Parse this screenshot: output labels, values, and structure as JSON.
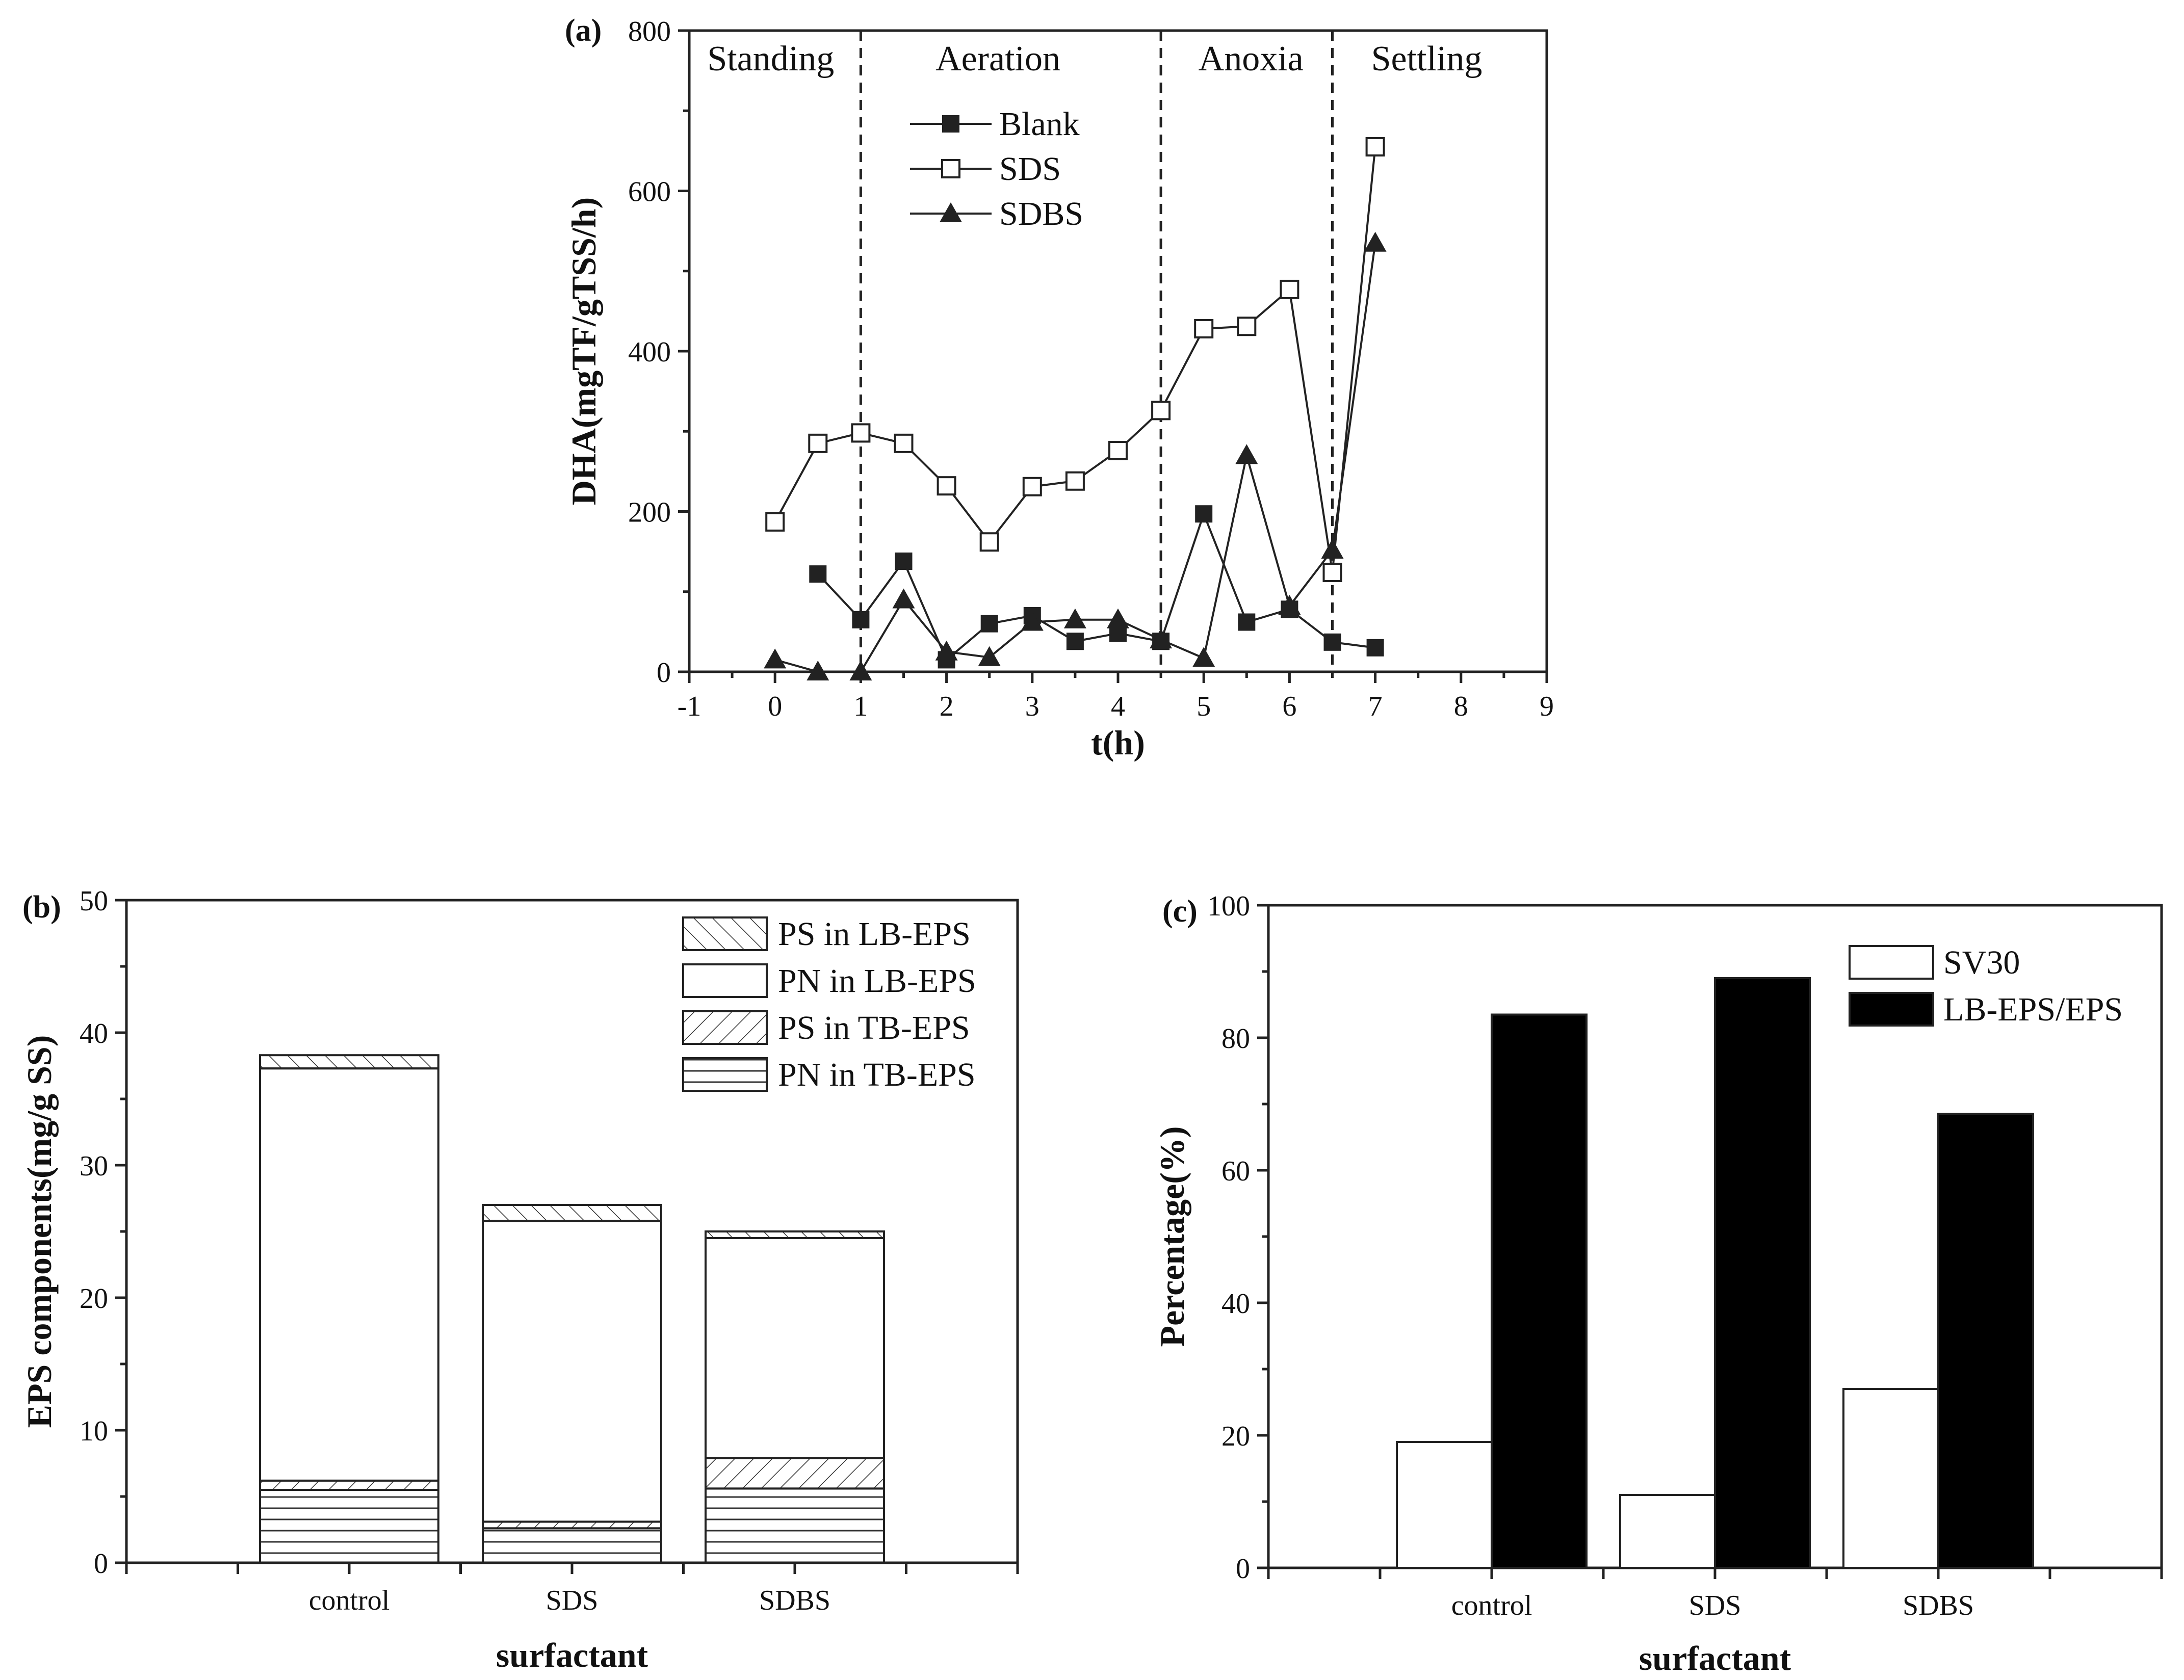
{
  "colors": {
    "ink": "#222222",
    "bar_black": "#000000",
    "bar_white": "#ffffff"
  },
  "chart_data": [
    {
      "panel": "(a)",
      "type": "line",
      "xlabel": "t(h)",
      "ylabel": "DHA(mgTF/gTSS/h)",
      "xlim": [
        -1,
        9
      ],
      "ylim": [
        0,
        800
      ],
      "xticks": [
        "-1",
        "0",
        "1",
        "2",
        "3",
        "4",
        "5",
        "6",
        "7",
        "8",
        "9"
      ],
      "yticks": [
        "0",
        "200",
        "400",
        "600",
        "800"
      ],
      "phase_lines": [
        1,
        4.5,
        6.5
      ],
      "phases": [
        {
          "label": "Standing",
          "x": -0.05
        },
        {
          "label": "Aeration",
          "x": 2.6
        },
        {
          "label": "Anoxia",
          "x": 5.55
        },
        {
          "label": "Settling",
          "x": 7.6
        }
      ],
      "series": [
        {
          "name": "Blank",
          "marker": "square-filled",
          "x": [
            0.5,
            1,
            1.5,
            2,
            2.5,
            3,
            3.5,
            4,
            4.5,
            5,
            5.5,
            6,
            6.5,
            7
          ],
          "y": [
            122,
            65,
            138,
            15,
            60,
            70,
            38,
            48,
            38,
            197,
            62,
            78,
            37,
            30
          ]
        },
        {
          "name": "SDS",
          "marker": "square-open",
          "x": [
            0,
            0.5,
            1,
            1.5,
            2,
            2.5,
            3,
            3.5,
            4,
            4.5,
            5,
            5.5,
            6,
            6.5,
            7
          ],
          "y": [
            187,
            285,
            298,
            285,
            232,
            162,
            231,
            238,
            276,
            326,
            428,
            431,
            477,
            124,
            655
          ]
        },
        {
          "name": "SDBS",
          "marker": "triangle-filled",
          "x": [
            0,
            0.5,
            1,
            1.5,
            2,
            2.5,
            3,
            3.5,
            4,
            4.5,
            5,
            5.5,
            6,
            6.5,
            7
          ],
          "y": [
            15,
            0,
            0,
            90,
            25,
            18,
            62,
            65,
            65,
            40,
            17,
            270,
            82,
            152,
            535
          ]
        }
      ]
    },
    {
      "panel": "(b)",
      "type": "bar",
      "stacked": true,
      "xlabel": "surfactant",
      "ylabel": "EPS components(mg/g SS)",
      "ylim": [
        0,
        50
      ],
      "yticks": [
        "0",
        "10",
        "20",
        "30",
        "40",
        "50"
      ],
      "categories": [
        "control",
        "SDS",
        "SDBS"
      ],
      "series": [
        {
          "name": "PN in TB-EPS",
          "pattern": "horizontal",
          "values": [
            5.5,
            2.6,
            5.6
          ]
        },
        {
          "name": "PS in TB-EPS",
          "pattern": "backslash",
          "values": [
            0.7,
            0.5,
            2.3
          ]
        },
        {
          "name": "PN in LB-EPS",
          "pattern": "blank",
          "values": [
            31.1,
            22.7,
            16.6
          ]
        },
        {
          "name": "PS in LB-EPS",
          "pattern": "slash",
          "values": [
            1.0,
            1.2,
            0.5
          ]
        }
      ],
      "legend_order": [
        "PS in LB-EPS",
        "PN in LB-EPS",
        "PS in TB-EPS",
        "PN in TB-EPS"
      ]
    },
    {
      "panel": "(c)",
      "type": "bar",
      "xlabel": "surfactant",
      "ylabel": "Percentage(%)",
      "ylim": [
        0,
        100
      ],
      "yticks": [
        "0",
        "20",
        "40",
        "60",
        "80",
        "100"
      ],
      "categories": [
        "control",
        "SDS",
        "SDBS"
      ],
      "series": [
        {
          "name": "SV30",
          "fill": "white",
          "values": [
            19,
            11,
            27
          ]
        },
        {
          "name": "LB-EPS/EPS",
          "fill": "black",
          "values": [
            83.5,
            89,
            68.5
          ]
        }
      ]
    }
  ]
}
